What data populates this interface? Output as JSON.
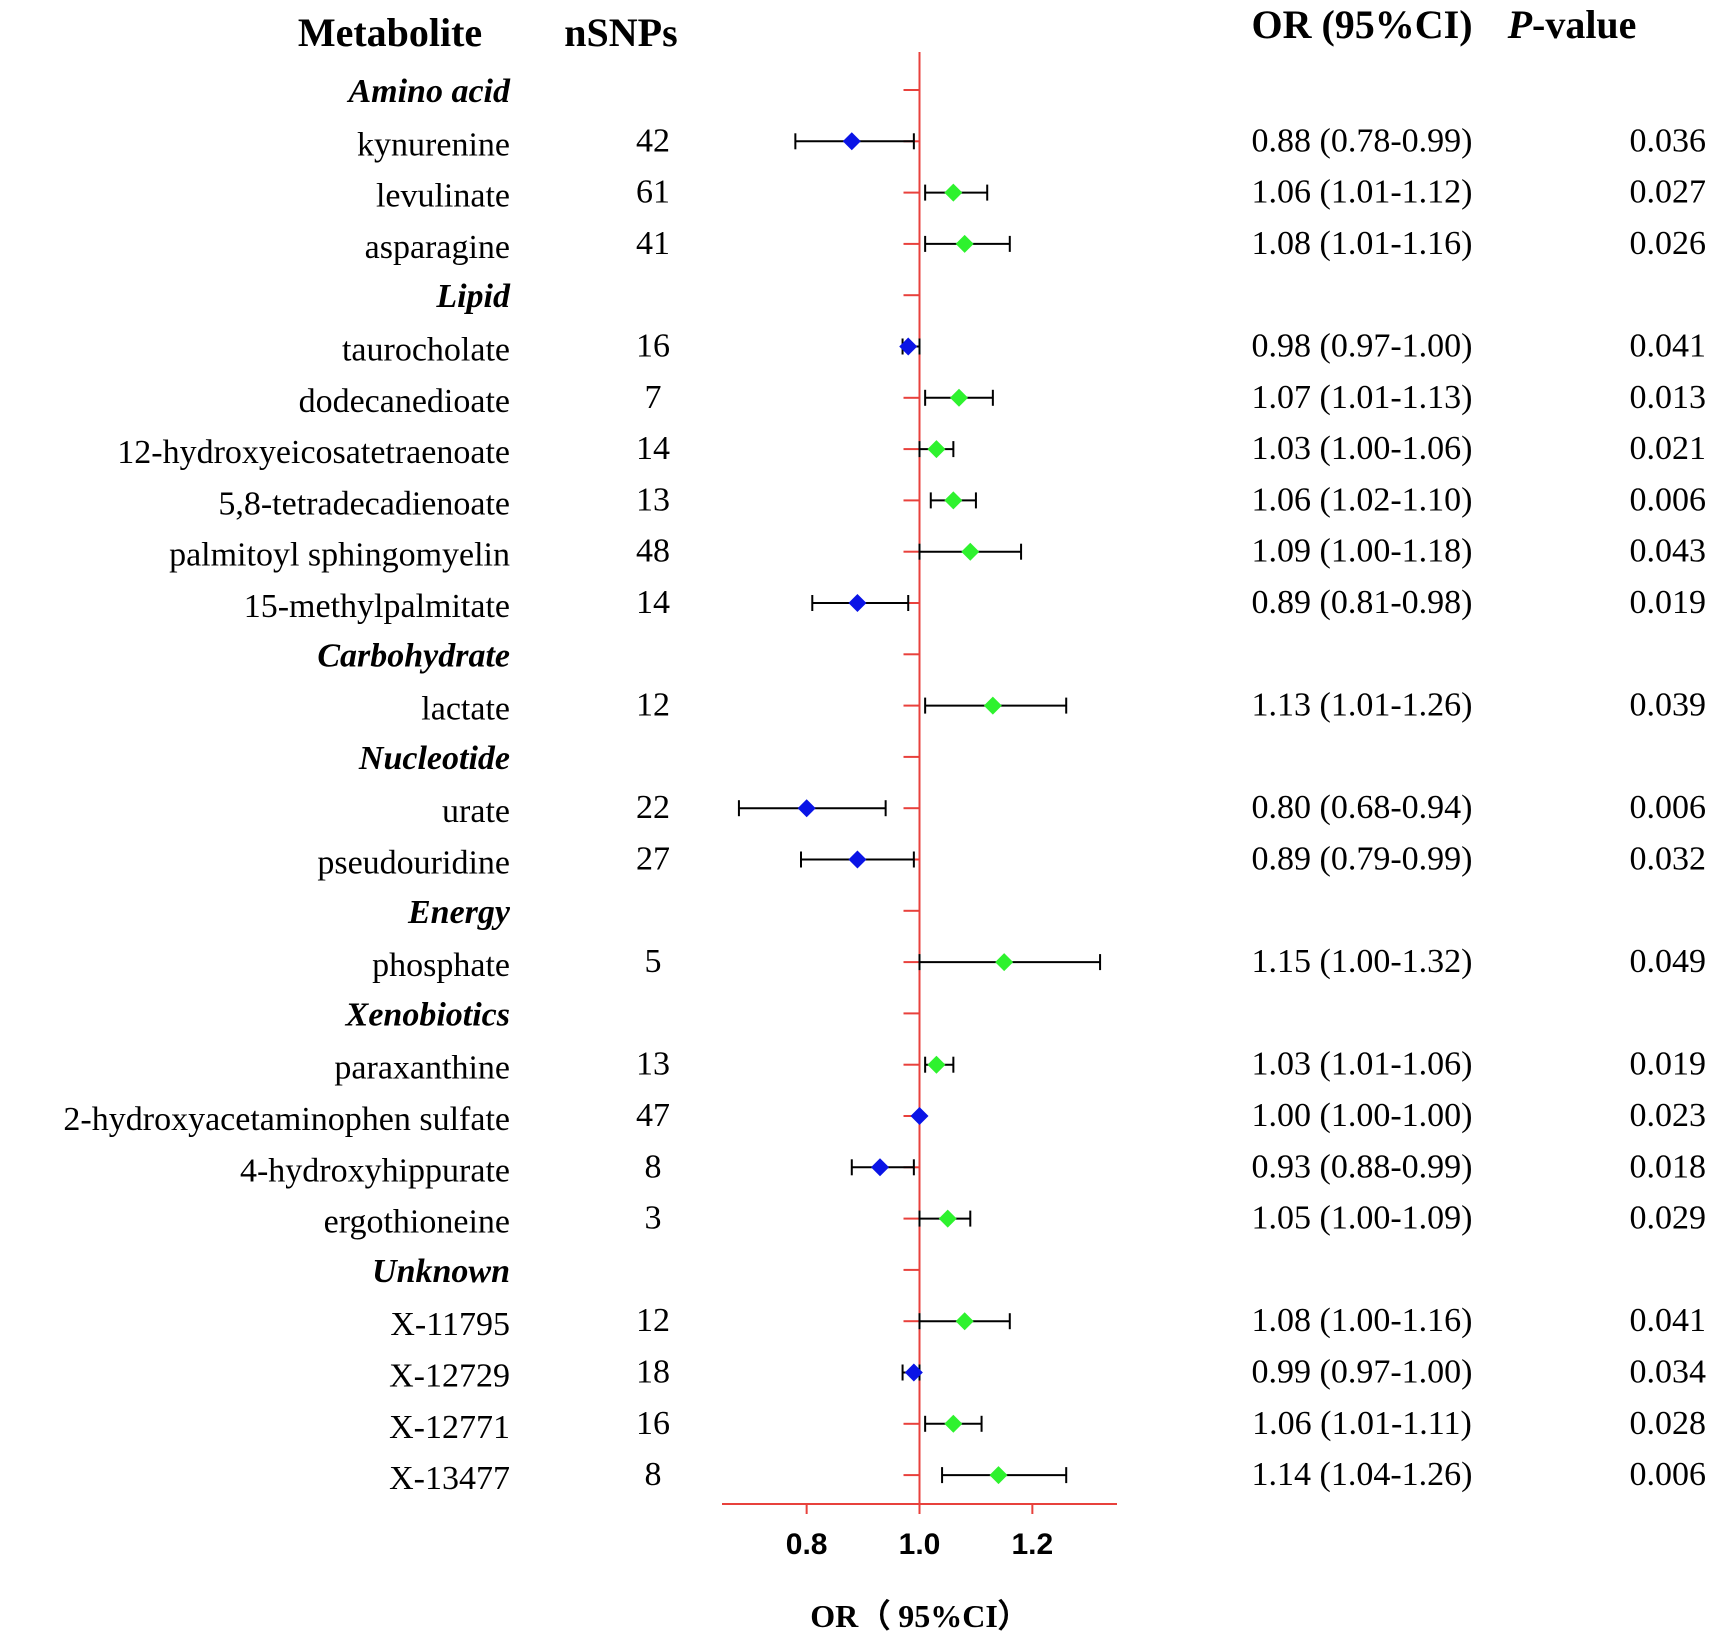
{
  "headers": {
    "metabolite": "Metabolite",
    "nsnps": "nSNPs",
    "or_ci": "OR (95%CI)",
    "p_italic": "P",
    "p_rest": "-value"
  },
  "colors": {
    "reference_line": "#e8413c",
    "protective": "#0a14e6",
    "risk": "#2ef22e",
    "ci_line": "#000000",
    "text": "#000000"
  },
  "chart_data": {
    "type": "forest",
    "title": "",
    "xlabel": "OR（ 95%CI）",
    "reference_value": 1.0,
    "xlim": [
      0.65,
      1.35
    ],
    "xticks": [
      0.8,
      1.0,
      1.2
    ],
    "xtick_labels": [
      "0.8",
      "1.0",
      "1.2"
    ],
    "rows": [
      {
        "kind": "category",
        "label": "Amino acid"
      },
      {
        "kind": "item",
        "label": "kynurenine",
        "nsnps": "42",
        "or": 0.88,
        "lo": 0.78,
        "hi": 0.99,
        "or_text": "0.88 (0.78-0.99)",
        "p": "0.036"
      },
      {
        "kind": "item",
        "label": "levulinate",
        "nsnps": "61",
        "or": 1.06,
        "lo": 1.01,
        "hi": 1.12,
        "or_text": "1.06 (1.01-1.12)",
        "p": "0.027"
      },
      {
        "kind": "item",
        "label": "asparagine",
        "nsnps": "41",
        "or": 1.08,
        "lo": 1.01,
        "hi": 1.16,
        "or_text": "1.08 (1.01-1.16)",
        "p": "0.026"
      },
      {
        "kind": "category",
        "label": "Lipid"
      },
      {
        "kind": "item",
        "label": "taurocholate",
        "nsnps": "16",
        "or": 0.98,
        "lo": 0.97,
        "hi": 1.0,
        "or_text": "0.98 (0.97-1.00)",
        "p": "0.041"
      },
      {
        "kind": "item",
        "label": "dodecanedioate",
        "nsnps": "7",
        "or": 1.07,
        "lo": 1.01,
        "hi": 1.13,
        "or_text": "1.07 (1.01-1.13)",
        "p": "0.013"
      },
      {
        "kind": "item",
        "label": "12-hydroxyeicosatetraenoate",
        "nsnps": "14",
        "or": 1.03,
        "lo": 1.0,
        "hi": 1.06,
        "or_text": "1.03 (1.00-1.06)",
        "p": "0.021"
      },
      {
        "kind": "item",
        "label": "5,8-tetradecadienoate",
        "nsnps": "13",
        "or": 1.06,
        "lo": 1.02,
        "hi": 1.1,
        "or_text": "1.06 (1.02-1.10)",
        "p": "0.006"
      },
      {
        "kind": "item",
        "label": "palmitoyl sphingomyelin",
        "nsnps": "48",
        "or": 1.09,
        "lo": 1.0,
        "hi": 1.18,
        "or_text": "1.09 (1.00-1.18)",
        "p": "0.043"
      },
      {
        "kind": "item",
        "label": "15-methylpalmitate",
        "nsnps": "14",
        "or": 0.89,
        "lo": 0.81,
        "hi": 0.98,
        "or_text": "0.89 (0.81-0.98)",
        "p": "0.019"
      },
      {
        "kind": "category",
        "label": "Carbohydrate"
      },
      {
        "kind": "item",
        "label": "lactate",
        "nsnps": "12",
        "or": 1.13,
        "lo": 1.01,
        "hi": 1.26,
        "or_text": "1.13 (1.01-1.26)",
        "p": "0.039"
      },
      {
        "kind": "category",
        "label": "Nucleotide"
      },
      {
        "kind": "item",
        "label": "urate",
        "nsnps": "22",
        "or": 0.8,
        "lo": 0.68,
        "hi": 0.94,
        "or_text": "0.80 (0.68-0.94)",
        "p": "0.006"
      },
      {
        "kind": "item",
        "label": "pseudouridine",
        "nsnps": "27",
        "or": 0.89,
        "lo": 0.79,
        "hi": 0.99,
        "or_text": "0.89 (0.79-0.99)",
        "p": "0.032"
      },
      {
        "kind": "category",
        "label": "Energy"
      },
      {
        "kind": "item",
        "label": "phosphate",
        "nsnps": "5",
        "or": 1.15,
        "lo": 1.0,
        "hi": 1.32,
        "or_text": "1.15 (1.00-1.32)",
        "p": "0.049"
      },
      {
        "kind": "category",
        "label": "Xenobiotics"
      },
      {
        "kind": "item",
        "label": "paraxanthine",
        "nsnps": "13",
        "or": 1.03,
        "lo": 1.01,
        "hi": 1.06,
        "or_text": "1.03 (1.01-1.06)",
        "p": "0.019"
      },
      {
        "kind": "item",
        "label": "2-hydroxyacetaminophen sulfate",
        "nsnps": "47",
        "or": 1.0,
        "lo": 1.0,
        "hi": 1.0,
        "or_text": "1.00 (1.00-1.00)",
        "p": "0.023"
      },
      {
        "kind": "item",
        "label": "4-hydroxyhippurate",
        "nsnps": "8",
        "or": 0.93,
        "lo": 0.88,
        "hi": 0.99,
        "or_text": "0.93 (0.88-0.99)",
        "p": "0.018"
      },
      {
        "kind": "item",
        "label": "ergothioneine",
        "nsnps": "3",
        "or": 1.05,
        "lo": 1.0,
        "hi": 1.09,
        "or_text": "1.05 (1.00-1.09)",
        "p": "0.029"
      },
      {
        "kind": "category",
        "label": "Unknown"
      },
      {
        "kind": "item",
        "label": "X-11795",
        "nsnps": "12",
        "or": 1.08,
        "lo": 1.0,
        "hi": 1.16,
        "or_text": "1.08 (1.00-1.16)",
        "p": "0.041"
      },
      {
        "kind": "item",
        "label": "X-12729",
        "nsnps": "18",
        "or": 0.99,
        "lo": 0.97,
        "hi": 1.0,
        "or_text": "0.99 (0.97-1.00)",
        "p": "0.034"
      },
      {
        "kind": "item",
        "label": "X-12771",
        "nsnps": "16",
        "or": 1.06,
        "lo": 1.01,
        "hi": 1.11,
        "or_text": "1.06 (1.01-1.11)",
        "p": "0.028"
      },
      {
        "kind": "item",
        "label": "X-13477",
        "nsnps": "8",
        "or": 1.14,
        "lo": 1.04,
        "hi": 1.26,
        "or_text": "1.14 (1.04-1.26)",
        "p": "0.006"
      }
    ]
  }
}
